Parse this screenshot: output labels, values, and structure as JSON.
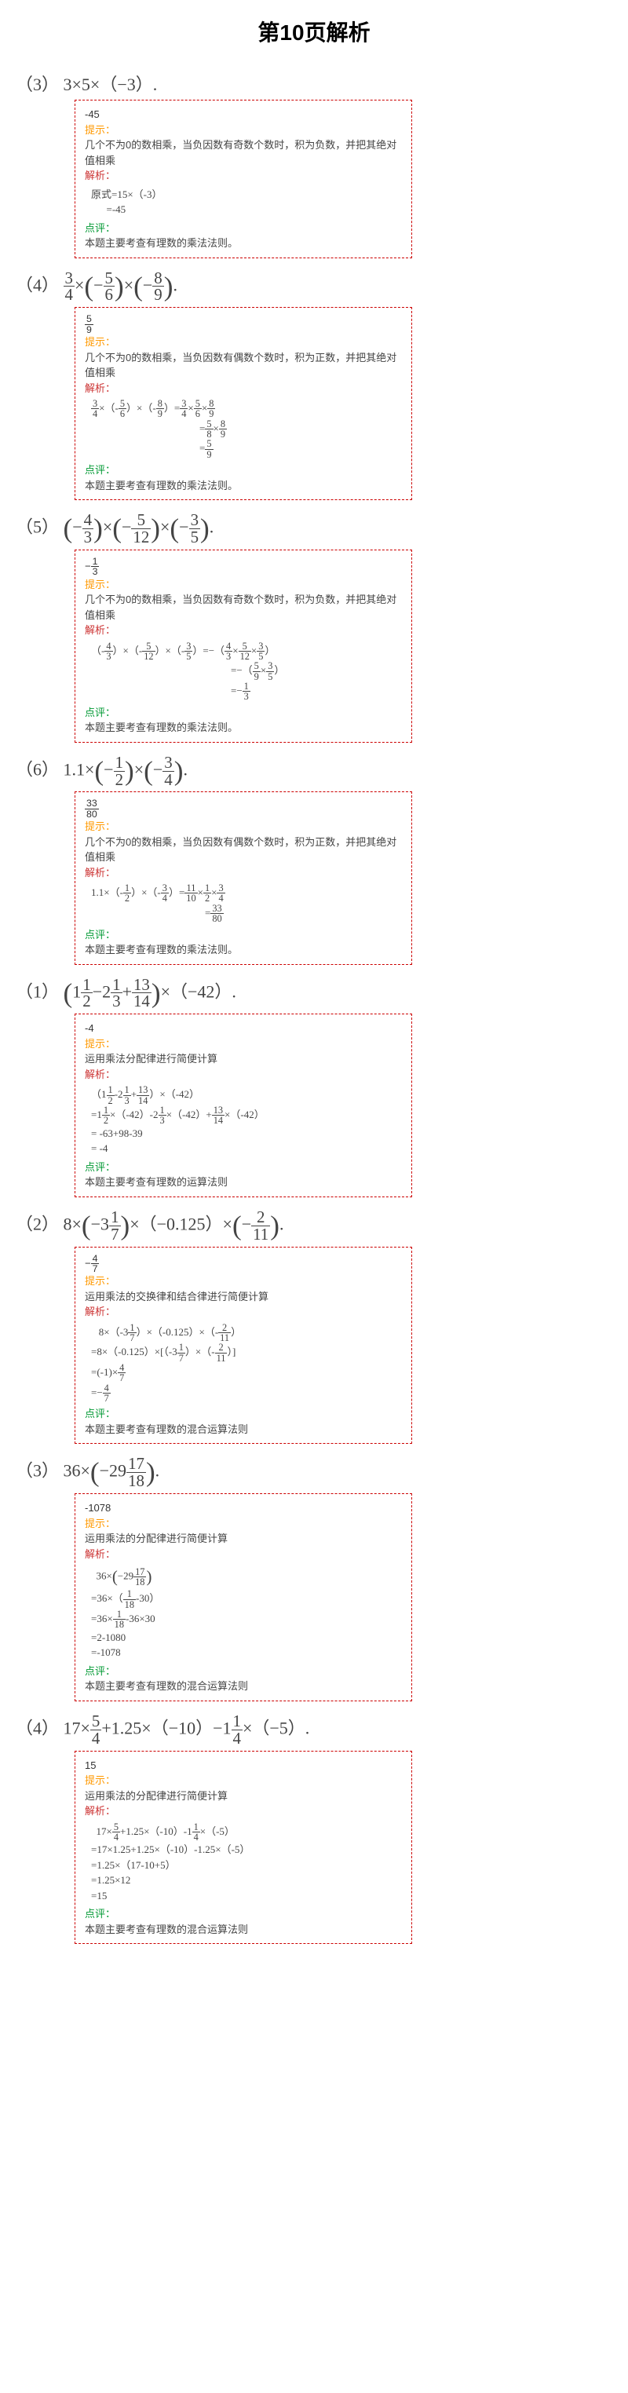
{
  "page_title": "第10页解析",
  "labels": {
    "hint": "提示：",
    "analysis": "解析：",
    "comment": "点评："
  },
  "problems": [
    {
      "num_label": "（3）",
      "expr_html": "3×5×（−3）.",
      "answer": "-45",
      "hint": "几个不为0的数相乘，当负因数有奇数个数时，积为负数，并把其绝对值相乘",
      "steps_html": "原式=15×（-3）<br>&nbsp;&nbsp;&nbsp;&nbsp;&nbsp;&nbsp;=-45",
      "comment": "本题主要考查有理数的乘法法则。"
    },
    {
      "num_label": "（4）",
      "expr_html": "<span class='frac'><span class='num'>3</span><span class='den'>4</span></span>×<span class='bigparen'>(</span>−<span class='frac'><span class='num'>5</span><span class='den'>6</span></span><span class='bigparen'>)</span>×<span class='bigparen'>(</span>−<span class='frac'><span class='num'>8</span><span class='den'>9</span></span><span class='bigparen'>)</span>.",
      "answer_html": "<span class='frac'><span class='num'>5</span><span class='den'>9</span></span>",
      "hint": "几个不为0的数相乘，当负因数有偶数个数时，积为正数，并把其绝对值相乘",
      "steps_html": "<span class='frac'><span class='num'>3</span><span class='den'>4</span></span>×（-<span class='frac'><span class='num'>5</span><span class='den'>6</span></span>）×（-<span class='frac'><span class='num'>8</span><span class='den'>9</span></span>）=<span class='frac'><span class='num'>3</span><span class='den'>4</span></span>×<span class='frac'><span class='num'>5</span><span class='den'>6</span></span>×<span class='frac'><span class='num'>8</span><span class='den'>9</span></span><br><span style='display:inline-block;width:138px;'></span>=<span class='frac'><span class='num'>5</span><span class='den'>8</span></span>×<span class='frac'><span class='num'>8</span><span class='den'>9</span></span><br><span style='display:inline-block;width:138px;'></span>=<span class='frac'><span class='num'>5</span><span class='den'>9</span></span>",
      "comment": "本题主要考查有理数的乘法法则。"
    },
    {
      "num_label": "（5）",
      "expr_html": "<span class='bigparen'>(</span>−<span class='frac'><span class='num'>4</span><span class='den'>3</span></span><span class='bigparen'>)</span>×<span class='bigparen'>(</span>−<span class='frac'><span class='num'>5</span><span class='den'>12</span></span><span class='bigparen'>)</span>×<span class='bigparen'>(</span>−<span class='frac'><span class='num'>3</span><span class='den'>5</span></span><span class='bigparen'>)</span>.",
      "answer_html": "−<span class='frac'><span class='num'>1</span><span class='den'>3</span></span>",
      "hint": "几个不为0的数相乘，当负因数有奇数个数时，积为负数，并把其绝对值相乘",
      "steps_html": "（-<span class='frac'><span class='num'>4</span><span class='den'>3</span></span>）×（-<span class='frac'><span class='num'>5</span><span class='den'>12</span></span>）×（-<span class='frac'><span class='num'>3</span><span class='den'>5</span></span>）=−（<span class='frac'><span class='num'>4</span><span class='den'>3</span></span>×<span class='frac'><span class='num'>5</span><span class='den'>12</span></span>×<span class='frac'><span class='num'>3</span><span class='den'>5</span></span>）<br><span style='display:inline-block;width:178px;'></span>=−（<span class='frac'><span class='num'>5</span><span class='den'>9</span></span>×<span class='frac'><span class='num'>3</span><span class='den'>5</span></span>）<br><span style='display:inline-block;width:178px;'></span>=−<span class='frac'><span class='num'>1</span><span class='den'>3</span></span>",
      "comment": "本题主要考查有理数的乘法法则。"
    },
    {
      "num_label": "（6）",
      "expr_html": "1.1×<span class='bigparen'>(</span>−<span class='frac'><span class='num'>1</span><span class='den'>2</span></span><span class='bigparen'>)</span>×<span class='bigparen'>(</span>−<span class='frac'><span class='num'>3</span><span class='den'>4</span></span><span class='bigparen'>)</span>.",
      "answer_html": "<span class='frac'><span class='num'>33</span><span class='den'>80</span></span>",
      "hint": "几个不为0的数相乘，当负因数有偶数个数时，积为正数，并把其绝对值相乘",
      "steps_html": "1.1×（-<span class='frac'><span class='num'>1</span><span class='den'>2</span></span>）×（-<span class='frac'><span class='num'>3</span><span class='den'>4</span></span>）=<span class='frac'><span class='num'>11</span><span class='den'>10</span></span>×<span class='frac'><span class='num'>1</span><span class='den'>2</span></span>×<span class='frac'><span class='num'>3</span><span class='den'>4</span></span><br><span style='display:inline-block;width:145px;'></span>=<span class='frac'><span class='num'>33</span><span class='den'>80</span></span>",
      "comment": "本题主要考查有理数的乘法法则。"
    },
    {
      "num_label": "（1）",
      "expr_html": "<span class='bigparen'>(</span>1<span class='frac'><span class='num'>1</span><span class='den'>2</span></span>−2<span class='frac'><span class='num'>1</span><span class='den'>3</span></span>+<span class='frac'><span class='num'>13</span><span class='den'>14</span></span><span class='bigparen'>)</span>×（−42）.",
      "answer": "-4",
      "hint": "运用乘法分配律进行简便计算",
      "steps_html": "（1<span class='frac'><span class='num'>1</span><span class='den'>2</span></span>-2<span class='frac'><span class='num'>1</span><span class='den'>3</span></span>+<span class='frac'><span class='num'>13</span><span class='den'>14</span></span>）×（-42）<br>=1<span class='frac'><span class='num'>1</span><span class='den'>2</span></span>×（-42）-2<span class='frac'><span class='num'>1</span><span class='den'>3</span></span>×（-42）+<span class='frac'><span class='num'>13</span><span class='den'>14</span></span>×（-42）<br>= -63+98-39<br>= -4",
      "comment": "本题主要考查有理数的运算法则"
    },
    {
      "num_label": "（2）",
      "expr_html": "8×<span class='bigparen'>(</span>−3<span class='frac'><span class='num'>1</span><span class='den'>7</span></span><span class='bigparen'>)</span>×（−0.125）×<span class='bigparen'>(</span>−<span class='frac'><span class='num'>2</span><span class='den'>11</span></span><span class='bigparen'>)</span>.",
      "answer_html": "−<span class='frac'><span class='num'>4</span><span class='den'>7</span></span>",
      "hint": "运用乘法的交换律和结合律进行简便计算",
      "steps_html": "&nbsp;&nbsp;&nbsp;8×（-3<span class='frac'><span class='num'>1</span><span class='den'>7</span></span>）×（-0.125）×（-<span class='frac'><span class='num'>2</span><span class='den'>11</span></span>）<br>=8×（-0.125）×[（-3<span class='frac'><span class='num'>1</span><span class='den'>7</span></span>）×（-<span class='frac'><span class='num'>2</span><span class='den'>11</span></span>）]<br>=(-1)×<span class='frac'><span class='num'>4</span><span class='den'>7</span></span><br>=−<span class='frac'><span class='num'>4</span><span class='den'>7</span></span>",
      "comment": "本题主要考查有理数的混合运算法则"
    },
    {
      "num_label": "（3）",
      "expr_html": "36×<span class='bigparen'>(</span>−29<span class='frac'><span class='num'>17</span><span class='den'>18</span></span><span class='bigparen'>)</span>.",
      "answer": "-1078",
      "hint": "运用乘法的分配律进行简便计算",
      "steps_html": "&nbsp;&nbsp;36×<span class='bigparen'>(</span>−29<span class='frac'><span class='num'>17</span><span class='den'>18</span></span><span class='bigparen'>)</span><br>=36×（<span class='frac'><span class='num'>1</span><span class='den'>18</span></span>-30）<br>=36×<span class='frac'><span class='num'>1</span><span class='den'>18</span></span>-36×30<br>=2-1080<br>=-1078",
      "comment": "本题主要考查有理数的混合运算法则"
    },
    {
      "num_label": "（4）",
      "expr_html": "17×<span class='frac'><span class='num'>5</span><span class='den'>4</span></span>+1.25×（−10）−1<span class='frac'><span class='num'>1</span><span class='den'>4</span></span>×（−5）.",
      "answer": "15",
      "hint": "运用乘法的分配律进行简便计算",
      "steps_html": "&nbsp;&nbsp;17×<span class='frac'><span class='num'>5</span><span class='den'>4</span></span>+1.25×（-10）-1<span class='frac'><span class='num'>1</span><span class='den'>4</span></span>×（-5）<br>=17×1.25+1.25×（-10）-1.25×（-5）<br>=1.25×（17-10+5）<br>=1.25×12<br>=15",
      "comment": "本题主要考查有理数的混合运算法则"
    }
  ]
}
